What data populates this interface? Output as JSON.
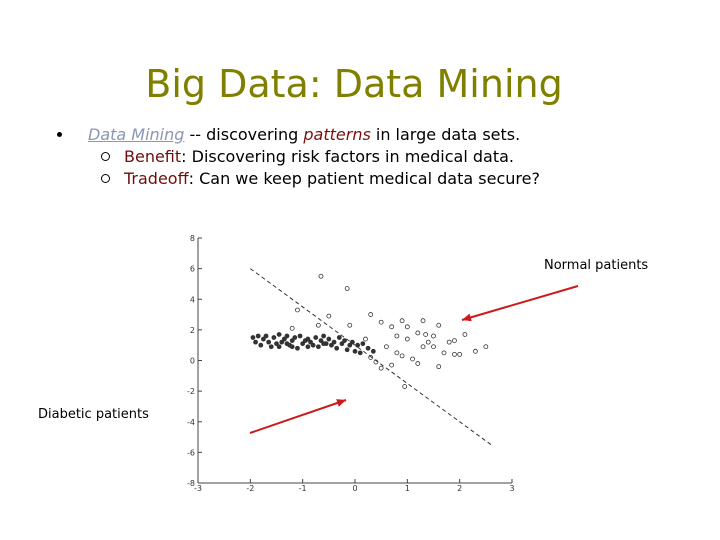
{
  "slide": {
    "title": "Big Data: Data Mining",
    "bullet1": {
      "link_text": "Data Mining",
      "text_before_em": " -- discovering ",
      "em_text": "patterns",
      "text_after_em": " in large data sets."
    },
    "sub_bullets": [
      {
        "term": "Benefit",
        "text": ":  Discovering risk factors in medical data."
      },
      {
        "term": "Tradeoff",
        "text": ":  Can we keep patient medical data secure?"
      }
    ],
    "callouts": {
      "normal": "Normal patients",
      "diabetic": "Diabetic patients"
    }
  },
  "chart_data": {
    "type": "scatter",
    "xlim": [
      -3,
      3
    ],
    "ylim": [
      -8,
      8
    ],
    "x_ticks": [
      "-3",
      "-2",
      "-1",
      "0",
      "1",
      "2",
      "3"
    ],
    "y_ticks": [
      "-8",
      "-6",
      "-4",
      "-2",
      "0",
      "2",
      "4",
      "6",
      "8"
    ],
    "series": [
      {
        "marker": "filled",
        "color": "#333333",
        "points": [
          [
            -1.95,
            1.5
          ],
          [
            -1.9,
            1.2
          ],
          [
            -1.85,
            1.6
          ],
          [
            -1.8,
            1.0
          ],
          [
            -1.75,
            1.4
          ],
          [
            -1.7,
            1.6
          ],
          [
            -1.65,
            1.2
          ],
          [
            -1.6,
            0.9
          ],
          [
            -1.55,
            1.5
          ],
          [
            -1.5,
            1.1
          ],
          [
            -1.45,
            1.7
          ],
          [
            -1.4,
            1.2
          ],
          [
            -1.35,
            1.4
          ],
          [
            -1.3,
            1.6
          ],
          [
            -1.25,
            1.0
          ],
          [
            -1.2,
            1.3
          ],
          [
            -1.15,
            1.5
          ],
          [
            -1.1,
            0.8
          ],
          [
            -1.05,
            1.6
          ],
          [
            -1.0,
            1.1
          ],
          [
            -0.95,
            1.3
          ],
          [
            -0.9,
            1.4
          ],
          [
            -0.85,
            1.2
          ],
          [
            -0.8,
            1.0
          ],
          [
            -0.75,
            1.5
          ],
          [
            -0.7,
            0.9
          ],
          [
            -0.65,
            1.3
          ],
          [
            -0.6,
            1.6
          ],
          [
            -0.55,
            1.1
          ],
          [
            -0.5,
            1.4
          ],
          [
            -0.45,
            1.0
          ],
          [
            -0.4,
            1.2
          ],
          [
            -0.35,
            0.8
          ],
          [
            -0.3,
            1.5
          ],
          [
            -0.25,
            1.1
          ],
          [
            -0.2,
            1.3
          ],
          [
            -0.15,
            0.7
          ],
          [
            -0.1,
            1.0
          ],
          [
            -0.05,
            1.2
          ],
          [
            0.0,
            0.6
          ],
          [
            0.05,
            1.0
          ],
          [
            0.1,
            0.5
          ],
          [
            0.15,
            1.1
          ],
          [
            0.25,
            0.8
          ],
          [
            0.35,
            0.6
          ],
          [
            -1.45,
            0.9
          ],
          [
            -1.3,
            1.1
          ],
          [
            -1.2,
            0.9
          ],
          [
            -0.9,
            0.9
          ],
          [
            -0.6,
            1.1
          ]
        ]
      },
      {
        "marker": "open",
        "color": "#333333",
        "points": [
          [
            -0.65,
            5.5
          ],
          [
            -0.15,
            4.7
          ],
          [
            -1.1,
            3.3
          ],
          [
            -0.5,
            2.9
          ],
          [
            -1.2,
            2.1
          ],
          [
            -0.7,
            2.3
          ],
          [
            -0.1,
            2.3
          ],
          [
            0.3,
            3.0
          ],
          [
            0.5,
            2.5
          ],
          [
            0.7,
            2.2
          ],
          [
            0.9,
            2.6
          ],
          [
            1.0,
            2.2
          ],
          [
            1.3,
            2.6
          ],
          [
            1.6,
            2.3
          ],
          [
            1.8,
            1.2
          ],
          [
            1.9,
            0.4
          ],
          [
            2.1,
            1.7
          ],
          [
            2.3,
            0.6
          ],
          [
            2.5,
            0.9
          ],
          [
            0.8,
            1.6
          ],
          [
            1.0,
            1.4
          ],
          [
            1.2,
            1.8
          ],
          [
            1.4,
            1.2
          ],
          [
            1.5,
            0.9
          ],
          [
            0.6,
            0.9
          ],
          [
            0.8,
            0.5
          ],
          [
            0.9,
            0.3
          ],
          [
            1.1,
            0.1
          ],
          [
            1.2,
            -0.2
          ],
          [
            1.6,
            -0.4
          ],
          [
            0.7,
            -0.3
          ],
          [
            0.5,
            -0.5
          ],
          [
            0.4,
            -0.1
          ],
          [
            0.3,
            0.2
          ],
          [
            1.5,
            1.6
          ],
          [
            1.35,
            1.7
          ],
          [
            1.9,
            1.3
          ],
          [
            2.0,
            0.4
          ],
          [
            1.7,
            0.5
          ],
          [
            0.95,
            -1.7
          ],
          [
            1.3,
            0.9
          ],
          [
            0.2,
            1.4
          ]
        ]
      }
    ],
    "decision_boundary": {
      "style": "dashed",
      "x": [
        -2.0,
        2.6
      ],
      "y": [
        6.0,
        -5.5
      ]
    }
  }
}
